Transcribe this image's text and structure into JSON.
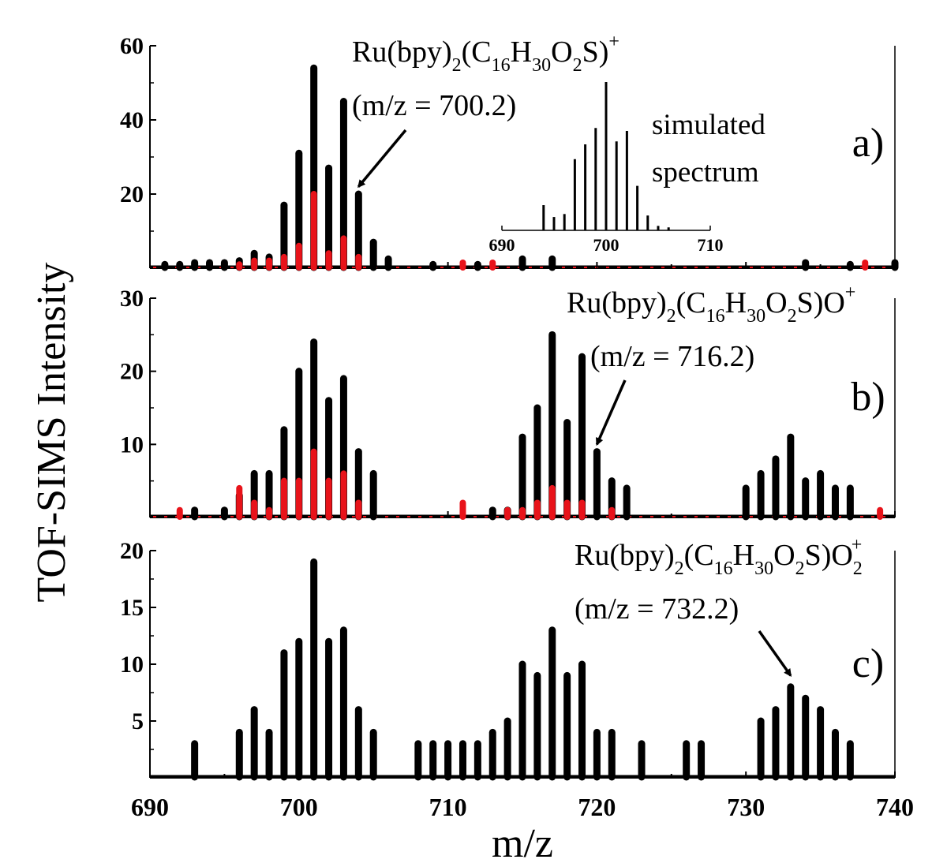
{
  "chart_data": {
    "type": "bar",
    "xlabel": "m/z",
    "ylabel": "TOF-SIMS Intensity",
    "xlim": [
      690,
      740
    ],
    "x_ticks": [
      "690",
      "700",
      "710",
      "720",
      "730",
      "740"
    ],
    "colors": {
      "main": "#000000",
      "reference": "#e8131a"
    },
    "panels": [
      {
        "label": "a)",
        "ylim": [
          0,
          60
        ],
        "y_ticks": [
          "20",
          "40",
          "60"
        ],
        "annotation": {
          "text": "Ru(bpy)2(C16H30O2S)+",
          "parts": [
            {
              "t": "Ru(bpy)"
            },
            {
              "t": "2",
              "sub": true
            },
            {
              "t": "(C"
            },
            {
              "t": "16",
              "sub": true
            },
            {
              "t": "H"
            },
            {
              "t": "30",
              "sub": true
            },
            {
              "t": "O"
            },
            {
              "t": "2",
              "sub": true
            },
            {
              "t": "S)"
            },
            {
              "t": "+",
              "sup": true
            }
          ],
          "mz_text": "(m/z = 700.2)",
          "arrow_target_mz": 704,
          "arrow_target_value": 22
        },
        "series": [
          {
            "name": "black",
            "x": [
              691,
              692,
              693,
              694,
              695,
              696,
              697,
              698,
              699,
              700,
              701,
              702,
              703,
              704,
              705,
              706,
              709,
              712,
              715,
              717,
              734,
              737,
              740
            ],
            "values": [
              1,
              1,
              1.5,
              1.5,
              1.5,
              2,
              4,
              3,
              17,
              31,
              54,
              27,
              45,
              20,
              7,
              2.5,
              1,
              1,
              2.5,
              2.5,
              1.5,
              1,
              1.5
            ]
          },
          {
            "name": "red",
            "x": [
              696,
              697,
              698,
              699,
              700,
              701,
              702,
              703,
              704,
              711,
              713,
              738
            ],
            "values": [
              1,
              2,
              2,
              3,
              6,
              20,
              4,
              8,
              3,
              1.5,
              1.5,
              1.5
            ]
          }
        ],
        "inset": {
          "title": "simulated spectrum",
          "title_lines": [
            "simulated",
            "spectrum"
          ],
          "x_ticks": [
            "690",
            "700",
            "710"
          ],
          "x": [
            694,
            695,
            696,
            697,
            698,
            699,
            700,
            701,
            702,
            703,
            704,
            705,
            706
          ],
          "values": [
            17,
            9,
            11,
            48,
            58,
            69,
            100,
            60,
            67,
            30,
            10,
            3,
            2
          ]
        }
      },
      {
        "label": "b)",
        "ylim": [
          0,
          30
        ],
        "y_ticks": [
          "10",
          "20",
          "30"
        ],
        "annotation": {
          "text": "Ru(bpy)2(C16H30O2S)O+",
          "parts": [
            {
              "t": "Ru(bpy)"
            },
            {
              "t": "2",
              "sub": true
            },
            {
              "t": "(C"
            },
            {
              "t": "16",
              "sub": true
            },
            {
              "t": "H"
            },
            {
              "t": "30",
              "sub": true
            },
            {
              "t": "O"
            },
            {
              "t": "2",
              "sub": true
            },
            {
              "t": "S)O"
            },
            {
              "t": "+",
              "sup": true
            }
          ],
          "mz_text": "(m/z = 716.2)",
          "arrow_target_mz": 720,
          "arrow_target_value": 10
        },
        "series": [
          {
            "name": "black",
            "x": [
              693,
              695,
              696,
              697,
              698,
              699,
              700,
              701,
              702,
              703,
              704,
              705,
              713,
              714,
              715,
              716,
              717,
              718,
              719,
              720,
              721,
              722,
              730,
              731,
              732,
              733,
              734,
              735,
              736,
              737
            ],
            "values": [
              1,
              1,
              3,
              6,
              6,
              12,
              20,
              24,
              16,
              19,
              9,
              6,
              1,
              1,
              11,
              15,
              25,
              13,
              22,
              9,
              5,
              4,
              4,
              6,
              8,
              11,
              5,
              6,
              4,
              4
            ]
          },
          {
            "name": "red",
            "x": [
              692,
              696,
              697,
              698,
              699,
              700,
              701,
              702,
              703,
              704,
              711,
              714,
              715,
              716,
              717,
              718,
              719,
              721,
              739
            ],
            "values": [
              1,
              4,
              2,
              1,
              5,
              5,
              9,
              5,
              6,
              2,
              2,
              1,
              1,
              2,
              4,
              2,
              2,
              1,
              1
            ]
          }
        ]
      },
      {
        "label": "c)",
        "ylim": [
          0,
          20
        ],
        "y_ticks": [
          "5",
          "10",
          "15",
          "20"
        ],
        "annotation": {
          "text": "Ru(bpy)2(C16H30O2S)O2+",
          "parts": [
            {
              "t": "Ru(bpy)"
            },
            {
              "t": "2",
              "sub": true
            },
            {
              "t": "(C"
            },
            {
              "t": "16",
              "sub": true
            },
            {
              "t": "H"
            },
            {
              "t": "30",
              "sub": true
            },
            {
              "t": "O"
            },
            {
              "t": "2",
              "sub": true
            },
            {
              "t": "S)O"
            },
            {
              "t": "2",
              "subsup": true
            },
            {
              "t": "+",
              "sup": true
            }
          ],
          "mz_text": "(m/z = 732.2)",
          "arrow_target_mz": 733,
          "arrow_target_value": 9
        },
        "series": [
          {
            "name": "black",
            "x": [
              693,
              696,
              697,
              698,
              699,
              700,
              701,
              702,
              703,
              704,
              705,
              708,
              709,
              710,
              711,
              712,
              713,
              714,
              715,
              716,
              717,
              718,
              719,
              720,
              721,
              723,
              726,
              727,
              731,
              732,
              733,
              734,
              735,
              736,
              737
            ],
            "values": [
              3,
              4,
              6,
              4,
              11,
              12,
              19,
              12,
              13,
              6,
              4,
              3,
              3,
              3,
              3,
              3,
              4,
              5,
              10,
              9,
              13,
              9,
              10,
              4,
              4,
              3,
              3,
              3,
              5,
              6,
              8,
              7,
              6,
              4,
              3
            ]
          }
        ]
      }
    ]
  }
}
